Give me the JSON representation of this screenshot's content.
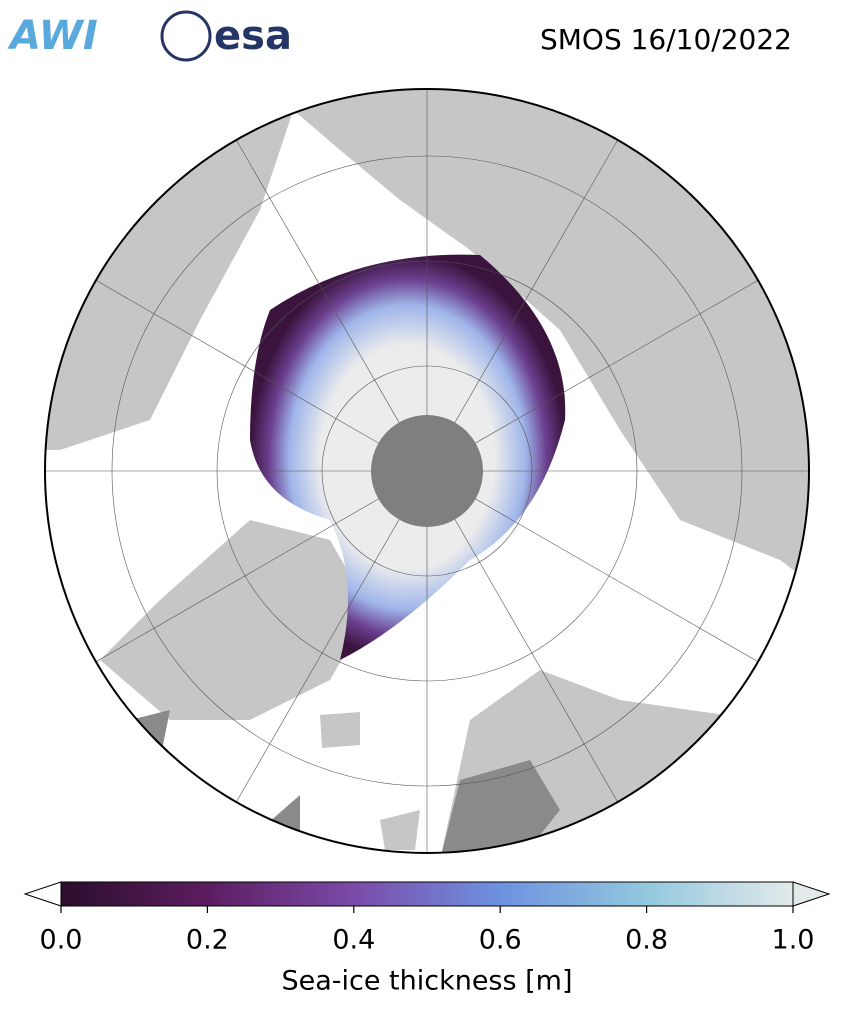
{
  "map": {
    "logos": [
      "AWI",
      "esa"
    ],
    "title": "SMOS 16/10/2022",
    "colorbar": {
      "label": "Sea-ice thickness [m]",
      "lim": [
        0,
        1
      ],
      "ticks": [
        {
          "value": 0,
          "label": "0.0"
        },
        0.2,
        0.4,
        0.6,
        0.8,
        {
          "value": 1,
          "label": "1.0"
        }
      ],
      "colors": [
        "#2b0e2c",
        "#5b1d5f",
        "#7b4ba9",
        "#6d92e0",
        "#93c8de",
        "#e3eaea"
      ]
    }
  }
}
